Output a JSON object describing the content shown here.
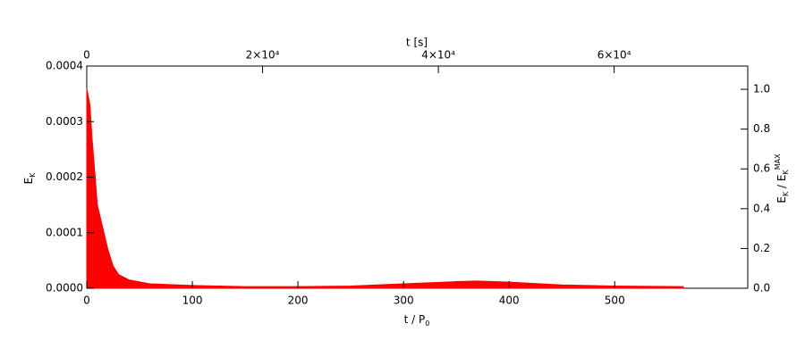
{
  "chart_data": {
    "type": "area",
    "xlabel": [
      "t / P",
      "0"
    ],
    "x2label": "t [s]",
    "ylabel": [
      "E",
      "K"
    ],
    "y2label": [
      "E",
      "K",
      " / E",
      "K",
      "MAX"
    ],
    "color": "#ff0000",
    "x": [
      0,
      1,
      3,
      5,
      8,
      10,
      15,
      20,
      25,
      30,
      40,
      60,
      100,
      150,
      200,
      250,
      300,
      350,
      370,
      400,
      450,
      500,
      565
    ],
    "values": [
      0.00036,
      0.00035,
      0.00033,
      0.00027,
      0.0002,
      0.00015,
      0.00011,
      7e-05,
      4e-05,
      2.5e-05,
      1.5e-05,
      8e-06,
      5e-06,
      3e-06,
      3e-06,
      4e-06,
      8e-06,
      1.2e-05,
      1.3e-05,
      1.1e-05,
      6e-06,
      4e-06,
      3e-06
    ],
    "xlim": [
      0,
      626
    ],
    "xticks": [
      0,
      100,
      200,
      300,
      400,
      500
    ],
    "x2lim": [
      0,
      75200
    ],
    "x2ticks": [
      {
        "value": 0,
        "label": "0"
      },
      {
        "value": 20000,
        "label": "2×10⁴"
      },
      {
        "value": 40000,
        "label": "4×10⁴"
      },
      {
        "value": 60000,
        "label": "6×10⁴"
      }
    ],
    "ylim": [
      0,
      0.0004
    ],
    "yticks": [
      {
        "value": 0,
        "label": "0.0000"
      },
      {
        "value": 0.0001,
        "label": "0.0001"
      },
      {
        "value": 0.0002,
        "label": "0.0002"
      },
      {
        "value": 0.0003,
        "label": "0.0003"
      },
      {
        "value": 0.0004,
        "label": "0.0004"
      }
    ],
    "y2lim": [
      0,
      1.117
    ],
    "y2ticks": [
      {
        "value": 0,
        "label": "0.0"
      },
      {
        "value": 0.2,
        "label": "0.2"
      },
      {
        "value": 0.4,
        "label": "0.4"
      },
      {
        "value": 0.6,
        "label": "0.6"
      },
      {
        "value": 0.8,
        "label": "0.8"
      },
      {
        "value": 1.0,
        "label": "1.0"
      }
    ]
  }
}
